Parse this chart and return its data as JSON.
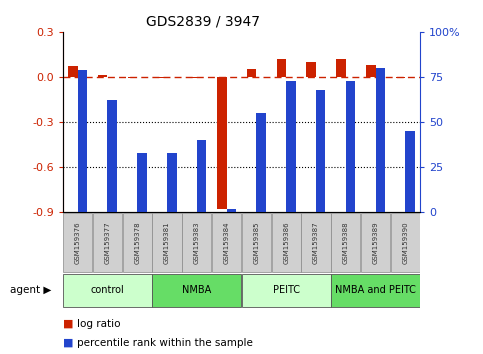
{
  "title": "GDS2839 / 3947",
  "samples": [
    "GSM159376",
    "GSM159377",
    "GSM159378",
    "GSM159381",
    "GSM159383",
    "GSM159384",
    "GSM159385",
    "GSM159386",
    "GSM159387",
    "GSM159388",
    "GSM159389",
    "GSM159390"
  ],
  "log_ratio": [
    0.07,
    0.01,
    -0.01,
    -0.005,
    -0.01,
    -0.88,
    0.05,
    0.12,
    0.1,
    0.12,
    0.08,
    -0.01
  ],
  "percentile_rank": [
    79,
    62,
    33,
    33,
    40,
    2,
    55,
    73,
    68,
    73,
    80,
    45
  ],
  "groups": [
    {
      "label": "control",
      "start": 0,
      "end": 3,
      "color": "#ccffcc"
    },
    {
      "label": "NMBA",
      "start": 3,
      "end": 6,
      "color": "#66dd66"
    },
    {
      "label": "PEITC",
      "start": 6,
      "end": 9,
      "color": "#ccffcc"
    },
    {
      "label": "NMBA and PEITC",
      "start": 9,
      "end": 12,
      "color": "#66dd66"
    }
  ],
  "bar_width": 0.32,
  "ylim_left": [
    -0.9,
    0.3
  ],
  "ylim_right": [
    0,
    100
  ],
  "yticks_left": [
    -0.9,
    -0.6,
    -0.3,
    0.0,
    0.3
  ],
  "yticks_right": [
    0,
    25,
    50,
    75,
    100
  ],
  "ytick_labels_right": [
    "0",
    "25",
    "50",
    "75",
    "100%"
  ],
  "dotted_lines": [
    -0.3,
    -0.6
  ],
  "red_color": "#cc2200",
  "blue_color": "#2244cc",
  "legend_items": [
    "log ratio",
    "percentile rank within the sample"
  ],
  "agent_label": "agent"
}
